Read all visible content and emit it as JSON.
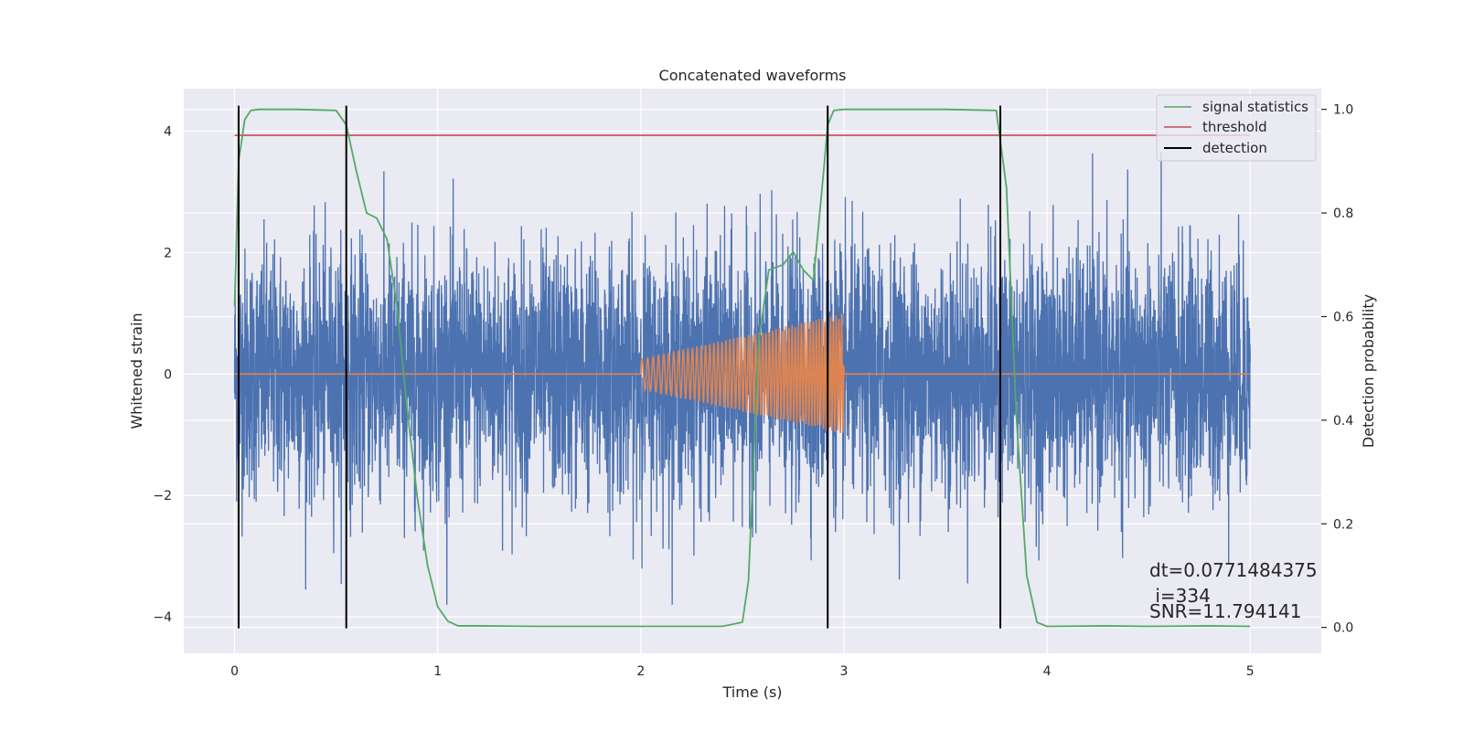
{
  "chart_data": {
    "type": "line",
    "title": "Concatenated waveforms",
    "xlabel": "Time (s)",
    "ylabel": "Whitened strain",
    "y2label": "Detection probability",
    "xlim": [
      -0.25,
      5.35
    ],
    "ylim": [
      -4.6,
      4.7
    ],
    "y2lim": [
      -0.05,
      1.04
    ],
    "x_ticks": [
      0,
      1,
      2,
      3,
      4,
      5
    ],
    "x_tick_labels": [
      "0",
      "1",
      "2",
      "3",
      "4",
      "5"
    ],
    "y_ticks": [
      -4,
      -2,
      0,
      2,
      4
    ],
    "y_tick_labels": [
      "−4",
      "−2",
      "0",
      "2",
      "4"
    ],
    "y2_ticks": [
      0.0,
      0.2,
      0.4,
      0.6,
      0.8,
      1.0
    ],
    "y2_tick_labels": [
      "0.0",
      "0.2",
      "0.4",
      "0.6",
      "0.8",
      "1.0"
    ],
    "grid": true,
    "legend_position": "top-right",
    "legend": [
      {
        "label": "signal statistics",
        "color": "#55a868"
      },
      {
        "label": "threshold",
        "color": "#c44e52"
      },
      {
        "label": "detection",
        "color": "#000000"
      }
    ],
    "noise": {
      "color": "#4c72b0",
      "x_range": [
        0,
        5
      ],
      "typical_amplitude": 1.2,
      "peak_amplitude": 3.8
    },
    "injection": {
      "color": "#dd8452",
      "x_start": 2.0,
      "x_end": 3.0,
      "amplitude_start": 0.25,
      "amplitude_end": 1.0,
      "freq_start_hz": 35,
      "freq_end_hz": 75
    },
    "signal_statistics": {
      "x": [
        0,
        0.02,
        0.05,
        0.08,
        0.12,
        0.3,
        0.5,
        0.55,
        0.6,
        0.65,
        0.7,
        0.75,
        0.8,
        0.85,
        0.9,
        0.95,
        1.0,
        1.05,
        1.1,
        1.2,
        1.5,
        2.0,
        2.4,
        2.5,
        2.53,
        2.58,
        2.63,
        2.7,
        2.75,
        2.8,
        2.85,
        2.9,
        2.92,
        2.95,
        3.0,
        3.5,
        3.75,
        3.8,
        3.85,
        3.9,
        3.95,
        4.0,
        4.3,
        4.5,
        4.8,
        5.0
      ],
      "y": [
        0.62,
        0.9,
        0.98,
        0.998,
        1.0,
        1.0,
        0.998,
        0.97,
        0.88,
        0.8,
        0.79,
        0.75,
        0.62,
        0.42,
        0.25,
        0.12,
        0.04,
        0.012,
        0.003,
        0.003,
        0.002,
        0.002,
        0.002,
        0.01,
        0.09,
        0.55,
        0.69,
        0.7,
        0.725,
        0.69,
        0.67,
        0.88,
        0.97,
        0.998,
        1.0,
        1.0,
        0.998,
        0.85,
        0.4,
        0.1,
        0.01,
        0.002,
        0.003,
        0.002,
        0.003,
        0.002
      ]
    },
    "threshold": {
      "x": [
        0,
        5
      ],
      "y": [
        0.95,
        0.95
      ]
    },
    "detections": [
      0.02,
      0.55,
      2.92,
      3.77
    ],
    "annotations": [
      "dt=0.0771484375",
      " i=334",
      "SNR=11.794141"
    ]
  }
}
